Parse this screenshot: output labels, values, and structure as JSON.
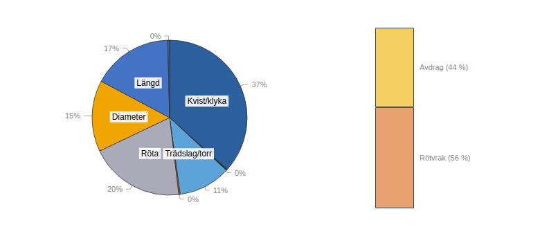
{
  "chart_data": [
    {
      "type": "pie",
      "categories": [
        "Kvist/klyka",
        null,
        "Trädslag/torr",
        null,
        "Röta",
        "Diameter",
        "Längd",
        null
      ],
      "values": [
        37,
        0.3,
        11,
        0.3,
        20,
        15,
        17,
        0.4
      ],
      "value_labels": [
        "37%",
        "0%",
        "11%",
        "0%",
        "20%",
        "15%",
        "17%",
        "0%"
      ],
      "colors": [
        "#2B5F9E",
        "#1a3a1a",
        "#5BA3D9",
        "#C85000",
        "#AAAAB8",
        "#F0A500",
        "#4472C4",
        "#2B5F9E"
      ],
      "data_labels": true
    },
    {
      "type": "bar",
      "categories": [
        null
      ],
      "series": [
        {
          "name": "Rötvrak (56 %)",
          "color": "#E8A070",
          "values": [
            56
          ]
        },
        {
          "name": "Avdrag (44 %)",
          "color": "#F5D060",
          "values": [
            44
          ]
        }
      ],
      "stacked": true,
      "ylim": [
        0,
        100
      ],
      "tick_labels": false
    }
  ]
}
